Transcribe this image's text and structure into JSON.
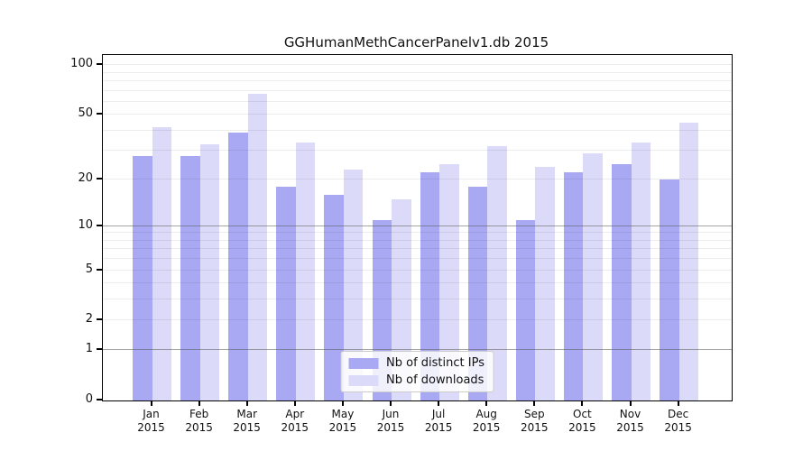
{
  "chart_data": {
    "type": "bar",
    "title": "GGHumanMethCancerPanelv1.db 2015",
    "categories": [
      "Jan 2015",
      "Feb 2015",
      "Mar 2015",
      "Apr 2015",
      "May 2015",
      "Jun 2015",
      "Jul 2015",
      "Aug 2015",
      "Sep 2015",
      "Oct 2015",
      "Nov 2015",
      "Dec 2015"
    ],
    "series": [
      {
        "name": "Nb of distinct IPs",
        "color": "#a9a9f3",
        "values": [
          28,
          28,
          39,
          18,
          16,
          11,
          22,
          18,
          11,
          22,
          25,
          20
        ]
      },
      {
        "name": "Nb of downloads",
        "color": "#dbdbf9",
        "values": [
          42,
          33,
          67,
          34,
          23,
          15,
          25,
          32,
          24,
          29,
          34,
          45
        ]
      }
    ],
    "xlabel": "",
    "ylabel": "",
    "y_axis": {
      "scale": "log1p",
      "ylim": [
        0,
        115
      ],
      "ticks": [
        0,
        1,
        2,
        5,
        10,
        20,
        50,
        100
      ],
      "gridlines_major": [
        1,
        10
      ],
      "gridlines_minor": [
        2,
        3,
        4,
        5,
        6,
        7,
        8,
        9,
        20,
        30,
        40,
        50,
        60,
        70,
        80,
        90,
        100
      ]
    },
    "grid": "on",
    "legend_position": "lower center"
  }
}
